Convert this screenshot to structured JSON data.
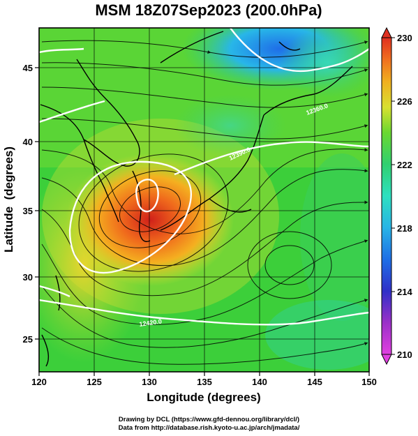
{
  "title": "MSM 18Z07Sep2023 (200.0hPa)",
  "map": {
    "xlabel": "Longitude (degrees)",
    "ylabel": "Latitude  (degrees)",
    "x_ticks": [
      "120",
      "125",
      "130",
      "135",
      "140",
      "145",
      "150"
    ],
    "y_ticks": [
      "25",
      "30",
      "35",
      "40",
      "45"
    ],
    "x_range": [
      120,
      150
    ],
    "y_range": [
      22.5,
      47.5
    ],
    "field": "geopotential height (colour shading) with streamlines and white contours",
    "contour_labels": [
      "12360.0",
      "12390.0",
      "12420.0"
    ]
  },
  "colorbar": {
    "ticks": [
      "230",
      "226",
      "222",
      "218",
      "214",
      "210"
    ],
    "range": [
      210,
      230
    ],
    "colors": [
      "#e040e0",
      "#9b30c8",
      "#2c3ad0",
      "#1e6fe6",
      "#28b4e6",
      "#2ee0c0",
      "#30d070",
      "#3ad030",
      "#8ee030",
      "#e0e030",
      "#f0b020",
      "#f07020",
      "#e03020"
    ]
  },
  "credits": {
    "line1": "Drawing by DCL (https://www.gfd-dennou.org/library/dcl/)",
    "line2": "Data from http://database.rish.kyoto-u.ac.jp/arch/jmadata/"
  }
}
